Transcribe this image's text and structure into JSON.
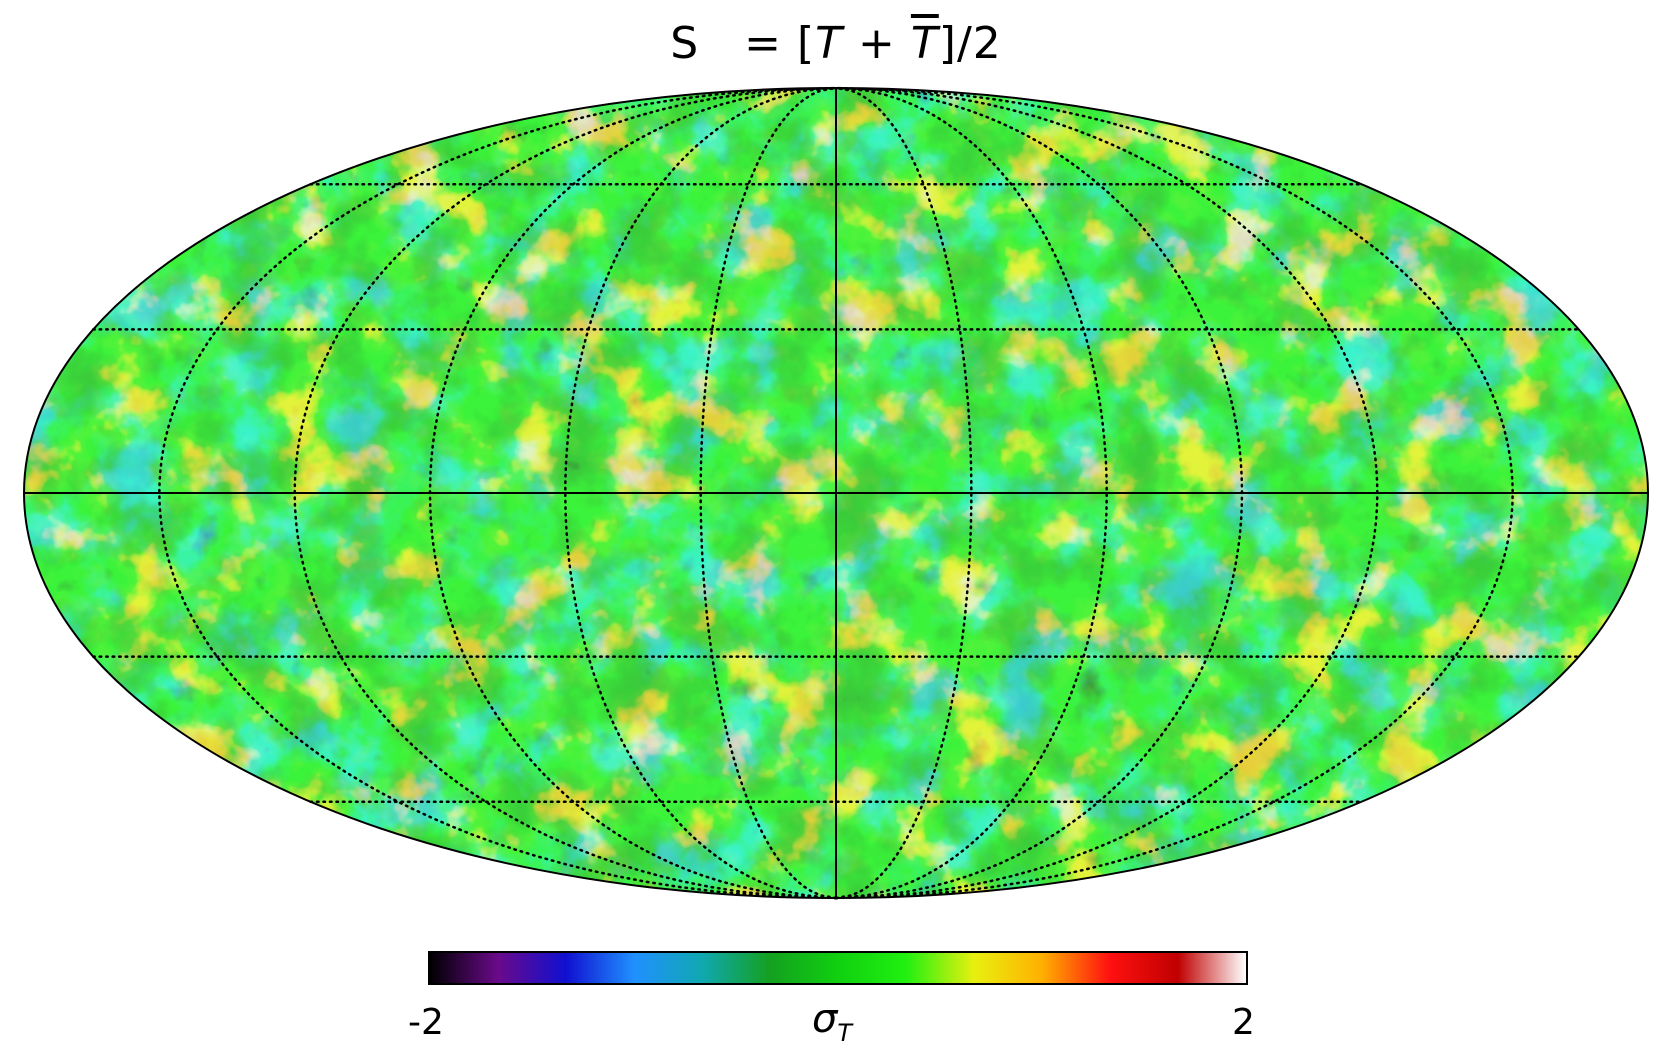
{
  "title": {
    "prefix": "S",
    "equals": "= [",
    "term1": "T",
    "plus": " + ",
    "term2": "T",
    "suffix": "]/2"
  },
  "map": {
    "projection": "mollweide",
    "graticule": "dotted",
    "parallels_deg": [
      -60,
      -30,
      0,
      30,
      60
    ],
    "meridian_step_deg": 30,
    "central_axes": "solid"
  },
  "colorbar": {
    "min_label": "-2",
    "max_label": "2",
    "label_symbol": "σ",
    "label_subscript": "T",
    "range": [
      -2,
      2
    ],
    "colors": [
      "#000000",
      "#6a0a8a",
      "#1010d0",
      "#2090ff",
      "#10a8b0",
      "#14a020",
      "#10d010",
      "#20f010",
      "#e8f010",
      "#ffb000",
      "#ff1010",
      "#c00000",
      "#ffffff"
    ]
  }
}
